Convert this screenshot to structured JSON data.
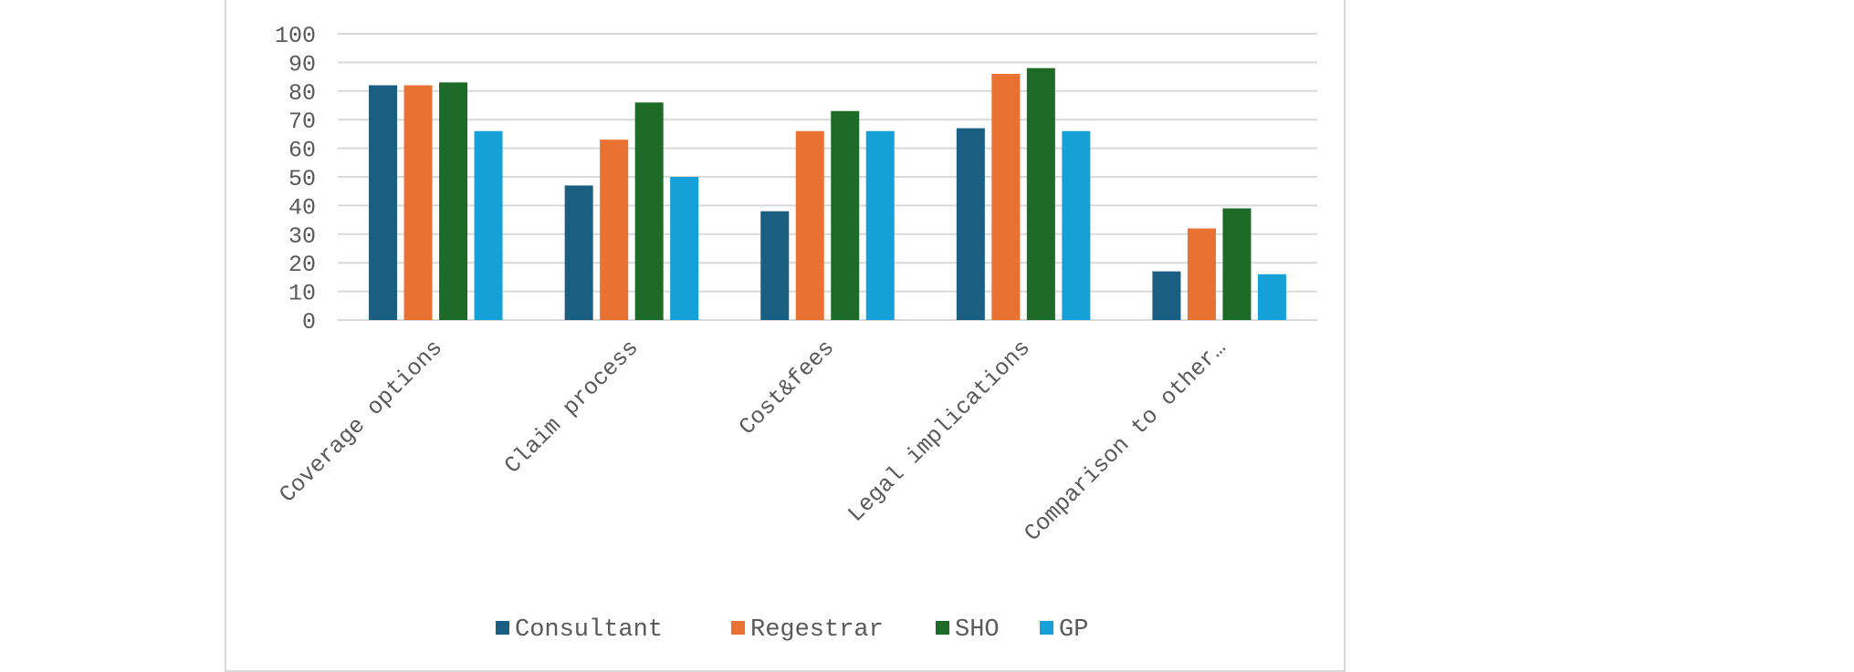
{
  "chart_data": {
    "type": "bar",
    "categories": [
      "Coverage options",
      "Claim process",
      "Cost&fees",
      "Legal implications",
      "Comparison to other…"
    ],
    "series": [
      {
        "name": "Consultant",
        "color": "#1a5e82",
        "values": [
          82,
          47,
          38,
          67,
          17
        ]
      },
      {
        "name": "Regestrar",
        "color": "#e97132",
        "values": [
          82,
          63,
          66,
          86,
          32
        ]
      },
      {
        "name": "SHO",
        "color": "#1e6b27",
        "values": [
          83,
          76,
          73,
          88,
          39
        ]
      },
      {
        "name": "GP",
        "color": "#15a0d8",
        "values": [
          66,
          50,
          66,
          66,
          16
        ]
      }
    ],
    "ylim": [
      0,
      100
    ],
    "yticks": [
      0,
      10,
      20,
      30,
      40,
      50,
      60,
      70,
      80,
      90,
      100
    ],
    "grid": true,
    "legend_position": "bottom"
  }
}
